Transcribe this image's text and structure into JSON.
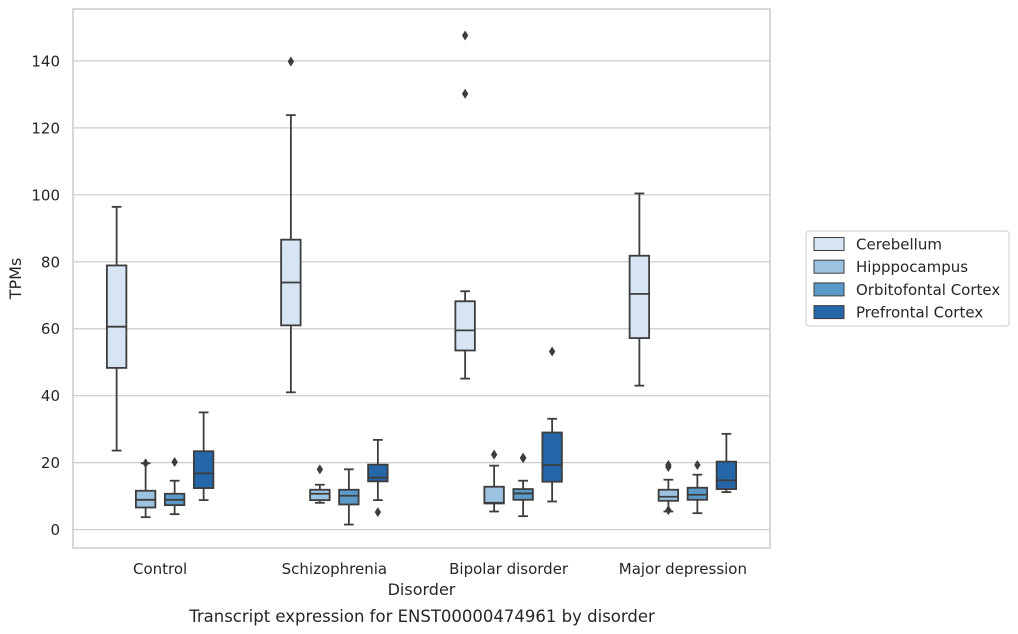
{
  "caption": "Transcript expression for ENST00000474961 by disorder",
  "chart_data": {
    "type": "box",
    "xlabel": "Disorder",
    "ylabel": "TPMs",
    "ylim": [
      -5.5,
      155.5
    ],
    "yticks": [
      0,
      20,
      40,
      60,
      80,
      100,
      120,
      140
    ],
    "grid": true,
    "legend_position": "right",
    "categories": [
      "Control",
      "Schizophrenia",
      "Bipolar disorder",
      "Major depression"
    ],
    "series": [
      {
        "name": "Cerebellum",
        "color": "#d6e4f3",
        "boxes": [
          {
            "q1": 48.3,
            "median": 60.6,
            "q3": 78.9,
            "whisker_low": 23.6,
            "whisker_high": 96.4,
            "outliers": []
          },
          {
            "q1": 61.0,
            "median": 73.8,
            "q3": 86.6,
            "whisker_low": 41.0,
            "whisker_high": 123.8,
            "outliers": [
              139.8
            ]
          },
          {
            "q1": 53.5,
            "median": 59.5,
            "q3": 68.2,
            "whisker_low": 45.1,
            "whisker_high": 71.2,
            "outliers": [
              130.2,
              147.6
            ]
          },
          {
            "q1": 57.2,
            "median": 70.4,
            "q3": 81.8,
            "whisker_low": 43.0,
            "whisker_high": 100.4,
            "outliers": []
          }
        ]
      },
      {
        "name": "Hipppocampus",
        "color": "#9bc3df",
        "boxes": [
          {
            "q1": 6.6,
            "median": 8.9,
            "q3": 11.6,
            "whisker_low": 3.7,
            "whisker_high": 19.8,
            "outliers": [
              19.8
            ]
          },
          {
            "q1": 8.8,
            "median": 10.7,
            "q3": 11.9,
            "whisker_low": 8.0,
            "whisker_high": 13.4,
            "outliers": [
              18.0
            ]
          },
          {
            "q1": 7.8,
            "median": 8.0,
            "q3": 12.8,
            "whisker_low": 5.4,
            "whisker_high": 19.1,
            "outliers": [
              22.4
            ]
          },
          {
            "q1": 8.6,
            "median": 9.8,
            "q3": 11.9,
            "whisker_low": 5.4,
            "whisker_high": 14.9,
            "outliers": [
              5.8,
              18.7,
              19.3
            ]
          }
        ]
      },
      {
        "name": "Orbitofontal Cortex",
        "color": "#5b9ac8",
        "boxes": [
          {
            "q1": 7.3,
            "median": 8.9,
            "q3": 10.7,
            "whisker_low": 4.6,
            "whisker_high": 14.6,
            "outliers": [
              20.2
            ]
          },
          {
            "q1": 7.5,
            "median": 10.1,
            "q3": 11.9,
            "whisker_low": 1.5,
            "whisker_high": 18.0,
            "outliers": []
          },
          {
            "q1": 8.9,
            "median": 10.8,
            "q3": 12.1,
            "whisker_low": 4.0,
            "whisker_high": 14.6,
            "outliers": [
              21.3,
              21.5
            ]
          },
          {
            "q1": 8.9,
            "median": 10.4,
            "q3": 12.5,
            "whisker_low": 4.9,
            "whisker_high": 16.4,
            "outliers": [
              19.3
            ]
          }
        ]
      },
      {
        "name": "Prefrontal Cortex",
        "color": "#2466a8",
        "boxes": [
          {
            "q1": 12.4,
            "median": 16.8,
            "q3": 23.4,
            "whisker_low": 8.8,
            "whisker_high": 35.0,
            "outliers": []
          },
          {
            "q1": 14.4,
            "median": 15.5,
            "q3": 19.4,
            "whisker_low": 8.8,
            "whisker_high": 26.8,
            "outliers": [
              5.2
            ]
          },
          {
            "q1": 14.3,
            "median": 19.3,
            "q3": 29.0,
            "whisker_low": 8.4,
            "whisker_high": 33.1,
            "outliers": [
              53.2
            ]
          },
          {
            "q1": 12.1,
            "median": 14.7,
            "q3": 20.3,
            "whisker_low": 11.2,
            "whisker_high": 28.6,
            "outliers": []
          }
        ]
      }
    ]
  }
}
